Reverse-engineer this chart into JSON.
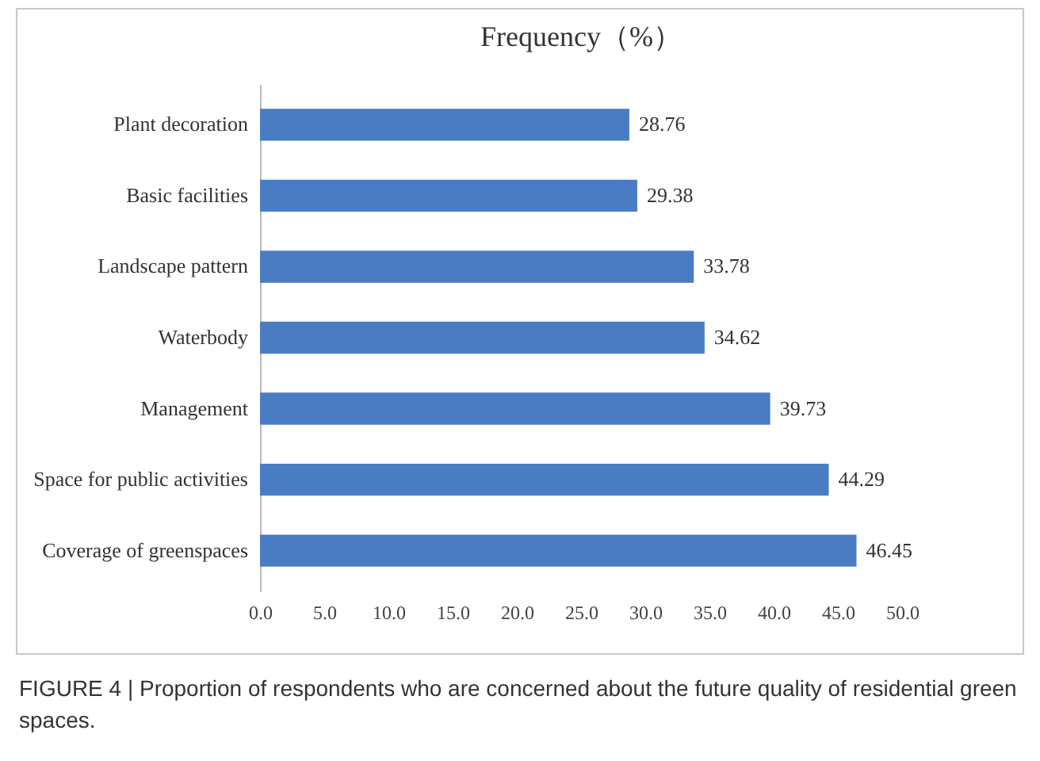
{
  "chart_data": {
    "type": "bar",
    "orientation": "horizontal",
    "title": "Frequency（%）",
    "categories": [
      "Plant decoration",
      "Basic facilities",
      "Landscape pattern",
      "Waterbody",
      "Management",
      "Space for public activities",
      "Coverage of greenspaces"
    ],
    "values": [
      28.76,
      29.38,
      33.78,
      34.62,
      39.73,
      44.29,
      46.45
    ],
    "color": "#4a7cc4",
    "data_labels": true,
    "grid": false,
    "xlim": [
      0,
      50
    ],
    "xticks": [
      {
        "value": 0,
        "label": "0.0"
      },
      {
        "value": 5,
        "label": "5.0"
      },
      {
        "value": 10,
        "label": "10.0"
      },
      {
        "value": 15,
        "label": "15.0"
      },
      {
        "value": 20,
        "label": "20.0"
      },
      {
        "value": 25,
        "label": "25.0"
      },
      {
        "value": 30,
        "label": "30.0"
      },
      {
        "value": 35,
        "label": "35.0"
      },
      {
        "value": 40,
        "label": "40.0"
      },
      {
        "value": 45,
        "label": "45.0"
      },
      {
        "value": 50,
        "label": "50.0"
      }
    ],
    "annotations": [
      "FIGURE 4 | Proportion of respondents who are concerned about the future quality of residential green spaces."
    ]
  }
}
